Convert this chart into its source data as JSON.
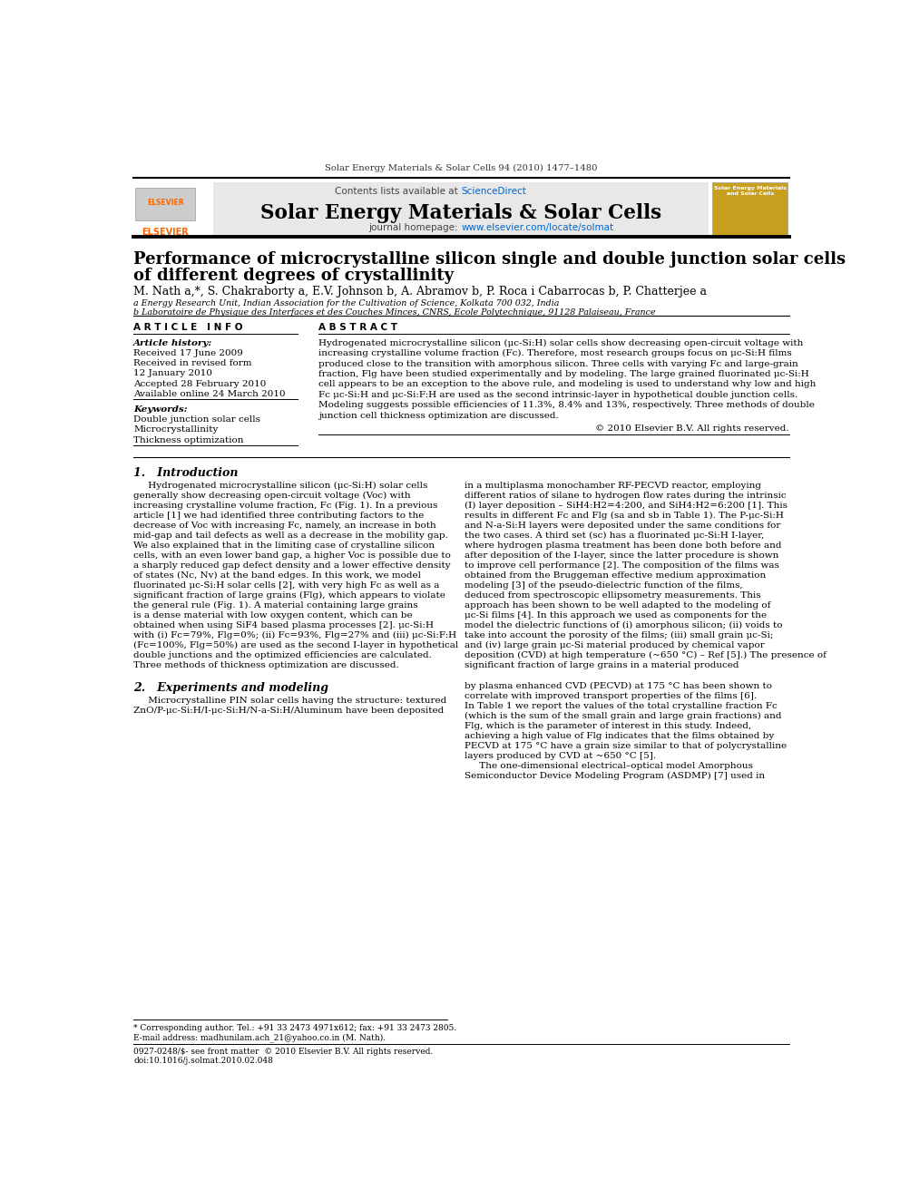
{
  "journal_line": "Solar Energy Materials & Solar Cells 94 (2010) 1477–1480",
  "journal_name": "Solar Energy Materials & Solar Cells",
  "contents_text": "Contents lists available at ScienceDirect",
  "journal_url": "journal homepage:  www.elsevier.com/locate/solmat",
  "paper_title_line1": "Performance of microcrystalline silicon single and double junction solar cells",
  "paper_title_line2": "of different degrees of crystallinity",
  "authors": "M. Nath a,*, S. Chakraborty a, E.V. Johnson b, A. Abramov b, P. Roca i Cabarrocas b, P. Chatterjee a",
  "affil_a": "a Energy Research Unit, Indian Association for the Cultivation of Science, Kolkata 700 032, India",
  "affil_b": "b Laboratoire de Physique des Interfaces et des Couches Minces, CNRS, Ecole Polytechnique, 91128 Palaiseau, France",
  "article_info_header": "A R T I C L E   I N F O",
  "abstract_header": "A B S T R A C T",
  "article_history_label": "Article history:",
  "received": "Received 17 June 2009",
  "received_revised": "Received in revised form",
  "received_revised2": "12 January 2010",
  "accepted": "Accepted 28 February 2010",
  "available": "Available online 24 March 2010",
  "keywords_label": "Keywords:",
  "keyword1": "Double junction solar cells",
  "keyword2": "Microcrystallinity",
  "keyword3": "Thickness optimization",
  "abstract_lines": [
    "Hydrogenated microcrystalline silicon (μc-Si:H) solar cells show decreasing open-circuit voltage with",
    "increasing crystalline volume fraction (Fc). Therefore, most research groups focus on μc-Si:H films",
    "produced close to the transition with amorphous silicon. Three cells with varying Fc and large-grain",
    "fraction, Flg have been studied experimentally and by modeling. The large grained fluorinated μc-Si:H",
    "cell appears to be an exception to the above rule, and modeling is used to understand why low and high",
    "Fc μc-Si:H and μc-Si:F:H are used as the second intrinsic-layer in hypothetical double junction cells.",
    "Modeling suggests possible efficiencies of 11.3%, 8.4% and 13%, respectively. Three methods of double",
    "junction cell thickness optimization are discussed."
  ],
  "copyright": "© 2010 Elsevier B.V. All rights reserved.",
  "section1_title": "1.   Introduction",
  "intro_left_lines": [
    "     Hydrogenated microcrystalline silicon (μc-Si:H) solar cells",
    "generally show decreasing open-circuit voltage (Voc) with",
    "increasing crystalline volume fraction, Fc (Fig. 1). In a previous",
    "article [1] we had identified three contributing factors to the",
    "decrease of Voc with increasing Fc, namely, an increase in both",
    "mid-gap and tail defects as well as a decrease in the mobility gap.",
    "We also explained that in the limiting case of crystalline silicon",
    "cells, with an even lower band gap, a higher Voc is possible due to",
    "a sharply reduced gap defect density and a lower effective density",
    "of states (Nc, Nv) at the band edges. In this work, we model",
    "fluorinated μc-Si:H solar cells [2], with very high Fc as well as a",
    "significant fraction of large grains (Flg), which appears to violate",
    "the general rule (Fig. 1). A material containing large grains",
    "is a dense material with low oxygen content, which can be",
    "obtained when using SiF4 based plasma processes [2]. μc-Si:H",
    "with (i) Fc=79%, Flg=0%; (ii) Fc=93%, Flg=27% and (iii) μc-Si:F:H",
    "(Fc=100%, Flg=50%) are used as the second I-layer in hypothetical",
    "double junctions and the optimized efficiencies are calculated.",
    "Three methods of thickness optimization are discussed."
  ],
  "intro_right_lines": [
    "in a multiplasma monochamber RF-PECVD reactor, employing",
    "different ratios of silane to hydrogen flow rates during the intrinsic",
    "(I) layer deposition – SiH4:H2=4:200, and SiH4:H2=6:200 [1]. This",
    "results in different Fc and Flg (sa and sb in Table 1). The P-μc-Si:H",
    "and N-a-Si:H layers were deposited under the same conditions for",
    "the two cases. A third set (sc) has a fluorinated μc-Si:H I-layer,",
    "where hydrogen plasma treatment has been done both before and",
    "after deposition of the I-layer, since the latter procedure is shown",
    "to improve cell performance [2]. The composition of the films was",
    "obtained from the Bruggeman effective medium approximation",
    "modeling [3] of the pseudo-dielectric function of the films,",
    "deduced from spectroscopic ellipsometry measurements. This",
    "approach has been shown to be well adapted to the modeling of",
    "μc-Si films [4]. In this approach we used as components for the",
    "model the dielectric functions of (i) amorphous silicon; (ii) voids to",
    "take into account the porosity of the films; (iii) small grain μc-Si;",
    "and (iv) large grain μc-Si material produced by chemical vapor",
    "deposition (CVD) at high temperature (~650 °C) – Ref [5].) The presence of",
    "significant fraction of large grains in a material produced"
  ],
  "section2_title": "2.   Experiments and modeling",
  "section2_left_lines": [
    "     Microcrystalline PIN solar cells having the structure: textured",
    "ZnO/P-μc-Si:H/I-μc-Si:H/N-a-Si:H/Aluminum have been deposited"
  ],
  "section2_right_lines": [
    "by plasma enhanced CVD (PECVD) at 175 °C has been shown to",
    "correlate with improved transport properties of the films [6].",
    "In Table 1 we report the values of the total crystalline fraction Fc",
    "(which is the sum of the small grain and large grain fractions) and",
    "Flg, which is the parameter of interest in this study. Indeed,",
    "achieving a high value of Flg indicates that the films obtained by",
    "PECVD at 175 °C have a grain size similar to that of polycrystalline",
    "layers produced by CVD at ~650 °C [5].",
    "     The one-dimensional electrical–optical model Amorphous",
    "Semiconductor Device Modeling Program (ASDMP) [7] used in"
  ],
  "footnote_star": "* Corresponding author. Tel.: +91 33 2473 4971x612; fax: +91 33 2473 2805.",
  "footnote_email": "E-mail address: madhunilam.ach_21@yahoo.co.in (M. Nath).",
  "footer1": "0927-0248/$- see front matter  © 2010 Elsevier B.V. All rights reserved.",
  "footer2": "doi:10.1016/j.solmat.2010.02.048",
  "bg_color": "#ffffff",
  "header_bg": "#e8e8e8",
  "elsevier_orange": "#FF6600",
  "link_color": "#0066CC",
  "text_color": "#000000"
}
